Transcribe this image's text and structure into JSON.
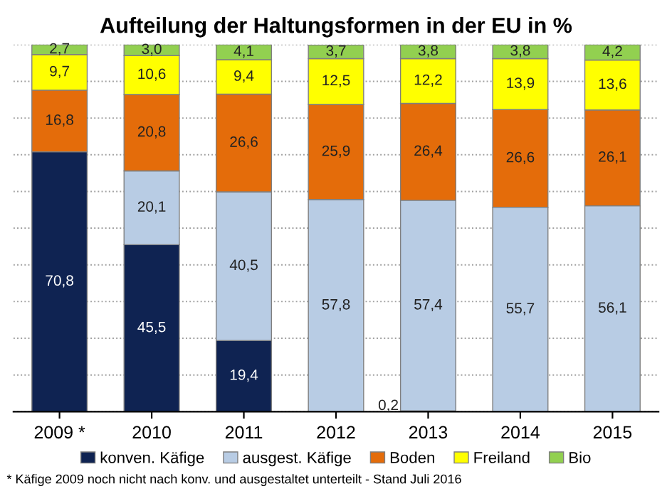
{
  "chart_data": {
    "type": "bar",
    "stacked": true,
    "title": "Aufteilung der Haltungsformen in der EU in %",
    "categories": [
      "2009 *",
      "2010",
      "2011",
      "2012",
      "2013",
      "2014",
      "2015"
    ],
    "series": [
      {
        "name": "konven. Käfige",
        "color": "#0f2352",
        "values": [
          70.8,
          45.5,
          19.4,
          null,
          0.2,
          null,
          null
        ],
        "value_labels": [
          "70,8",
          "45,5",
          "19,4",
          null,
          "0,2",
          null,
          null
        ]
      },
      {
        "name": "ausgest. Käfige",
        "color": "#b8cce4",
        "values": [
          null,
          20.1,
          40.5,
          57.8,
          57.4,
          55.7,
          56.1
        ],
        "value_labels": [
          null,
          "20,1",
          "40,5",
          "57,8",
          "57,4",
          "55,7",
          "56,1"
        ]
      },
      {
        "name": "Boden",
        "color": "#e46c0a",
        "values": [
          16.8,
          20.8,
          26.6,
          25.9,
          26.4,
          26.6,
          26.1
        ],
        "value_labels": [
          "16,8",
          "20,8",
          "26,6",
          "25,9",
          "26,4",
          "26,6",
          "26,1"
        ]
      },
      {
        "name": "Freiland",
        "color": "#ffff00",
        "values": [
          9.7,
          10.6,
          9.4,
          12.5,
          12.2,
          13.9,
          13.6
        ],
        "value_labels": [
          "9,7",
          "10,6",
          "9,4",
          "12,5",
          "12,2",
          "13,9",
          "13,6"
        ]
      },
      {
        "name": "Bio",
        "color": "#92d050",
        "values": [
          2.7,
          3.0,
          4.1,
          3.7,
          3.8,
          3.8,
          4.2
        ],
        "value_labels": [
          "2,7",
          "3,0",
          "4,1",
          "3,7",
          "3,8",
          "3,8",
          "4,2"
        ]
      }
    ],
    "ylim": [
      0,
      100
    ],
    "yticks": [
      {
        "value": 0,
        "label": null
      },
      {
        "value": 10,
        "label": null
      },
      {
        "value": 20,
        "label": null
      },
      {
        "value": 30,
        "label": null
      },
      {
        "value": 40,
        "label": null
      },
      {
        "value": 50,
        "label": null
      },
      {
        "value": 60,
        "label": null
      },
      {
        "value": 70,
        "label": null
      },
      {
        "value": 80,
        "label": null
      },
      {
        "value": 90,
        "label": null
      },
      {
        "value": 100,
        "label": null
      }
    ],
    "tick_labels": "x",
    "grid": "y",
    "legend": "bottom",
    "annotations": [
      "* Käfige 2009 noch nicht nach konv. und ausgestaltet unterteilt - Stand Juli 2016"
    ]
  }
}
